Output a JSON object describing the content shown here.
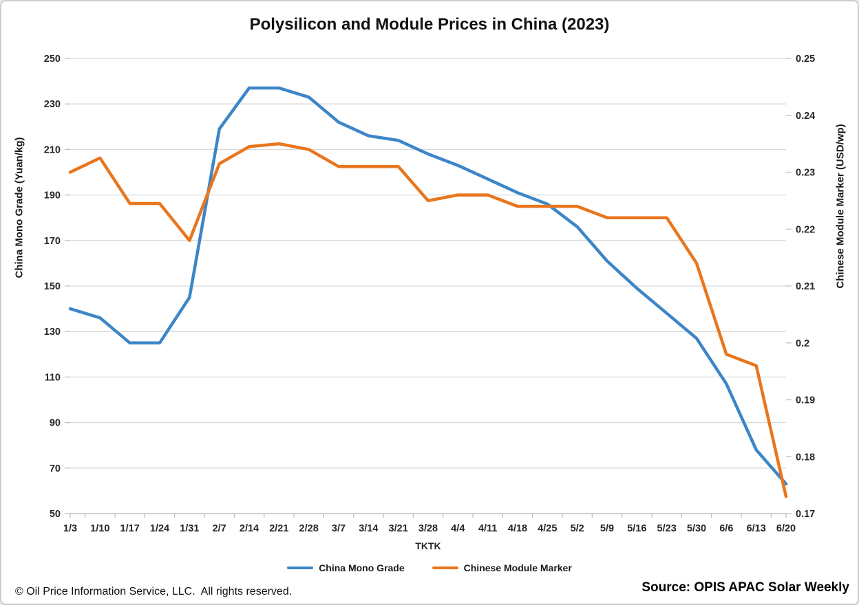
{
  "title": "Polysilicon and Module Prices in China (2023)",
  "footer": {
    "copyright": "© Oil Price Information Service, LLC.  All rights reserved.",
    "source": "Source: OPIS APAC Solar Weekly"
  },
  "chart_data": {
    "type": "line",
    "title": "Polysilicon and Module Prices in China (2023)",
    "xlabel": "TKTK",
    "grid": "horizontal",
    "legend_position": "bottom-center",
    "categories": [
      "1/3",
      "1/10",
      "1/17",
      "1/24",
      "1/31",
      "2/7",
      "2/14",
      "2/21",
      "2/28",
      "3/7",
      "3/14",
      "3/21",
      "3/28",
      "4/4",
      "4/11",
      "4/18",
      "4/25",
      "5/2",
      "5/9",
      "5/16",
      "5/23",
      "5/30",
      "6/6",
      "6/13",
      "6/20"
    ],
    "y_left": {
      "title": "China Mono Grade (Yuan/kg)",
      "min": 50,
      "max": 250,
      "ticks": [
        "250",
        "230",
        "210",
        "190",
        "170",
        "150",
        "130",
        "110",
        "90",
        "70",
        "50"
      ]
    },
    "y_right": {
      "title": "Chinese Module Marker (USD/wp)",
      "min": 0.17,
      "max": 0.25,
      "ticks": [
        "0.25",
        "0.24",
        "0.23",
        "0.22",
        "0.21",
        "0.2",
        "0.19",
        "0.18",
        "0.17"
      ]
    },
    "series": [
      {
        "name": "China Mono Grade",
        "axis": "left",
        "unit": "Yuan/kg",
        "color": "#3c86c8",
        "values": [
          140,
          136,
          125,
          125,
          145,
          219,
          237,
          237,
          233,
          222,
          216,
          214,
          208,
          203,
          197,
          191,
          186,
          176,
          161,
          149,
          138,
          127,
          107,
          78,
          63
        ]
      },
      {
        "name": "Chinese Module Marker",
        "axis": "right",
        "unit": "USD/wp",
        "color": "#e8761e",
        "values": [
          0.23,
          0.2325,
          0.2245,
          0.2245,
          0.218,
          0.2315,
          0.2345,
          0.235,
          0.234,
          0.231,
          0.231,
          0.231,
          0.225,
          0.226,
          0.226,
          0.224,
          0.224,
          0.224,
          0.222,
          0.222,
          0.222,
          0.214,
          0.198,
          0.196,
          0.173
        ]
      }
    ],
    "colors": {
      "gridline": "#d9d9d9",
      "axis_line": "#bfbfbf",
      "tick_text": "#262626"
    }
  }
}
